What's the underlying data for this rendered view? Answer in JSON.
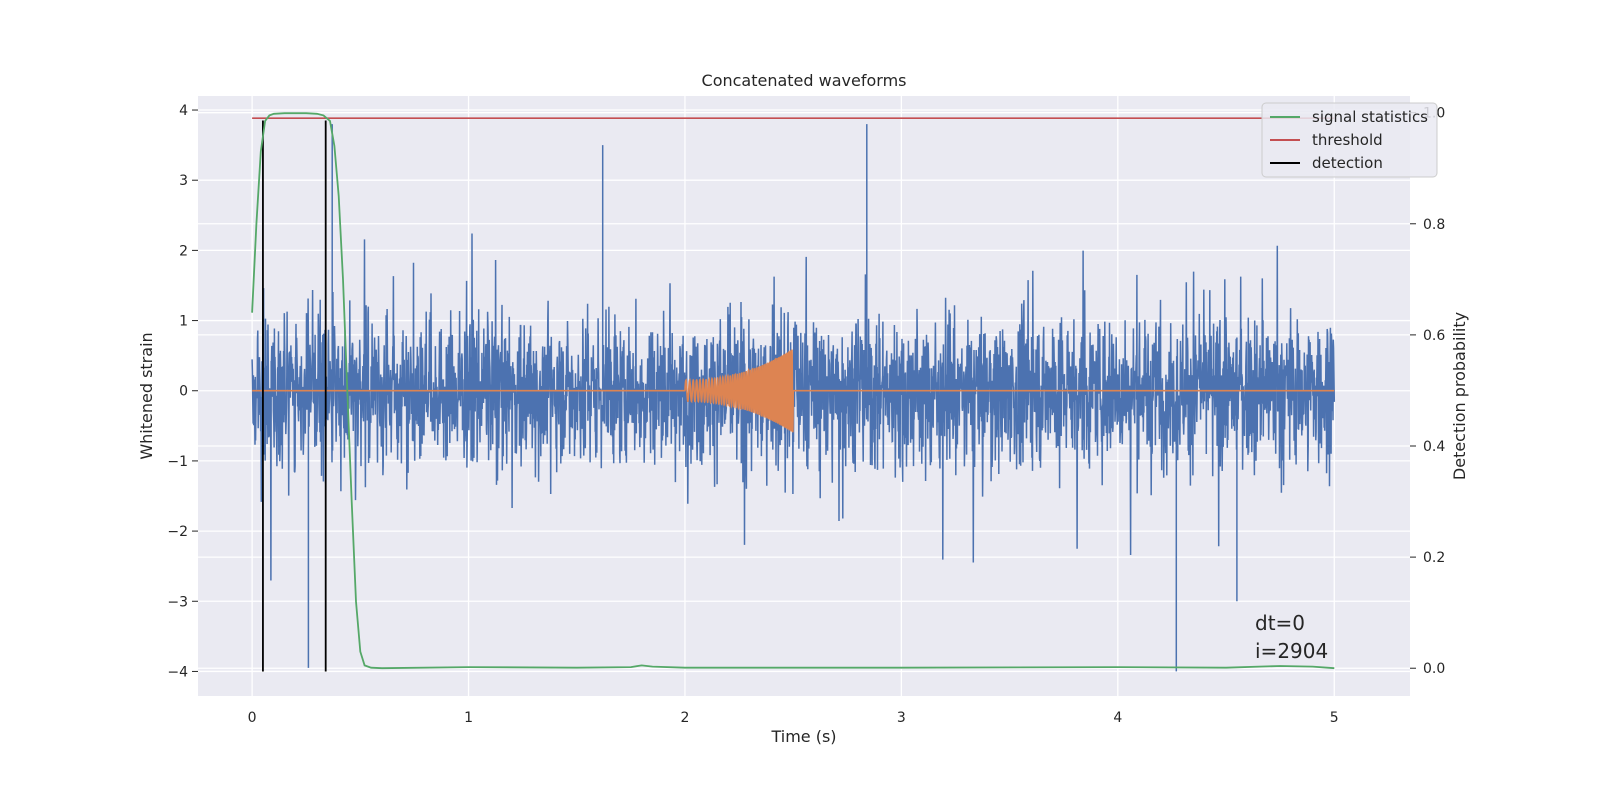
{
  "chart_data": {
    "type": "line",
    "title": "Concatenated waveforms",
    "xlabel": "Time (s)",
    "ylabel_left": "Whitened strain",
    "ylabel_right": "Detection probability",
    "xlim": [
      -0.25,
      5.35
    ],
    "ylim_left": [
      -4.35,
      4.2
    ],
    "ylim_right": [
      -0.05,
      1.03
    ],
    "xticks": [
      0,
      1,
      2,
      3,
      4,
      5
    ],
    "yticks_left": [
      -4,
      -3,
      -2,
      -1,
      0,
      1,
      2,
      3,
      4
    ],
    "yticks_right": [
      "0.0",
      "0.2",
      "0.4",
      "0.6",
      "0.8",
      "1.0"
    ],
    "grid": true,
    "legend_position": "top-right",
    "background": "#eaeaf2",
    "series": [
      {
        "name": "signal statistics",
        "color": "#55a868",
        "axis": "right",
        "x": [
          0,
          0.02,
          0.04,
          0.06,
          0.08,
          0.1,
          0.15,
          0.2,
          0.25,
          0.3,
          0.33,
          0.36,
          0.38,
          0.4,
          0.42,
          0.44,
          0.46,
          0.48,
          0.5,
          0.52,
          0.55,
          0.6,
          1.0,
          1.5,
          1.75,
          1.8,
          1.85,
          2.0,
          3.0,
          4.0,
          4.5,
          4.75,
          4.9,
          5.0
        ],
        "y": [
          0.64,
          0.8,
          0.93,
          0.985,
          0.995,
          0.998,
          0.999,
          0.999,
          0.999,
          0.998,
          0.995,
          0.985,
          0.94,
          0.85,
          0.7,
          0.5,
          0.3,
          0.12,
          0.03,
          0.005,
          0.001,
          0.0,
          0.002,
          0.001,
          0.002,
          0.005,
          0.003,
          0.001,
          0.001,
          0.002,
          0.001,
          0.004,
          0.003,
          0.0
        ]
      },
      {
        "name": "threshold",
        "color": "#c44e52",
        "axis": "right",
        "x": [
          0,
          5
        ],
        "y": [
          0.99,
          0.99
        ]
      },
      {
        "name": "detection",
        "color": "#000000",
        "axis": "right",
        "x": [
          0.05,
          0.34
        ]
      },
      {
        "name": "",
        "color": "#4c72b0",
        "axis": "left",
        "kind": "whitened noise",
        "x_range": [
          0,
          5
        ],
        "typical_amplitude": 0.75,
        "max": 3.8,
        "min": -4.0
      },
      {
        "name": "",
        "color": "#dd8452",
        "axis": "left",
        "kind": "chirp",
        "x_range": [
          2.0,
          2.5
        ],
        "amplitude_start": 0.15,
        "amplitude_end": 0.6
      }
    ],
    "annotations": [
      "dt=0",
      "i=2904"
    ]
  }
}
